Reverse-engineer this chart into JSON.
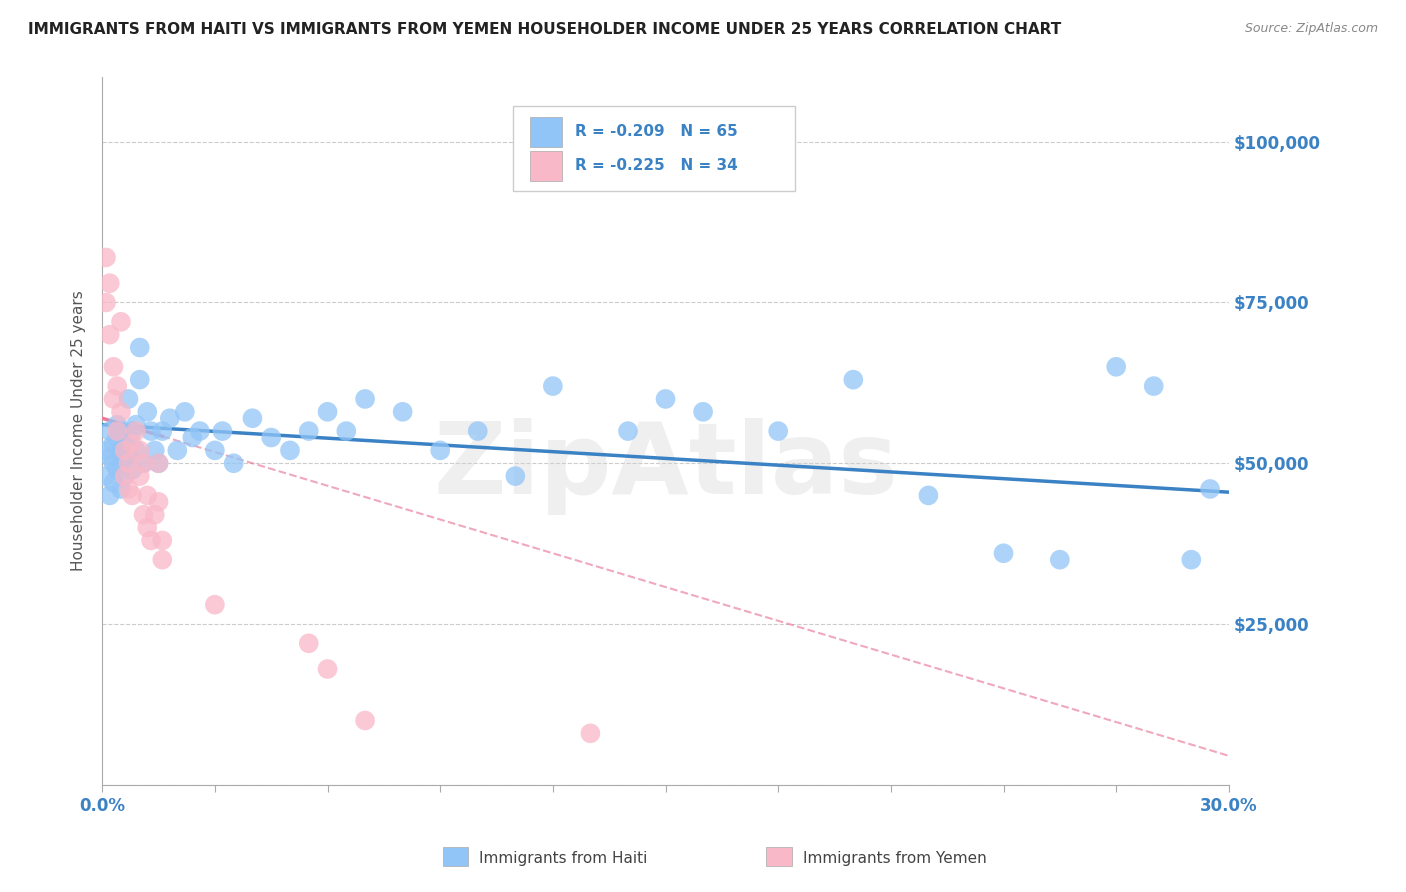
{
  "title": "IMMIGRANTS FROM HAITI VS IMMIGRANTS FROM YEMEN HOUSEHOLDER INCOME UNDER 25 YEARS CORRELATION CHART",
  "source": "Source: ZipAtlas.com",
  "ylabel": "Householder Income Under 25 years",
  "legend_label_1": "Immigrants from Haiti",
  "legend_label_2": "Immigrants from Yemen",
  "R1": -0.209,
  "N1": 65,
  "R2": -0.225,
  "N2": 34,
  "haiti_color": "#92C5F7",
  "haiti_line_color": "#3B82C4",
  "yemen_color": "#F9B8C8",
  "yemen_line_color": "#E87A9A",
  "watermark": "ZipAtlas",
  "xlim": [
    0.0,
    0.3
  ],
  "ylim": [
    0,
    110000
  ],
  "yticks": [
    0,
    25000,
    50000,
    75000,
    100000
  ],
  "ytick_labels": [
    "",
    "$25,000",
    "$50,000",
    "$75,000",
    "$100,000"
  ],
  "haiti_x": [
    0.001,
    0.001,
    0.002,
    0.002,
    0.002,
    0.003,
    0.003,
    0.003,
    0.004,
    0.004,
    0.004,
    0.005,
    0.005,
    0.005,
    0.005,
    0.006,
    0.006,
    0.006,
    0.007,
    0.007,
    0.007,
    0.008,
    0.008,
    0.009,
    0.009,
    0.01,
    0.01,
    0.011,
    0.012,
    0.013,
    0.014,
    0.015,
    0.016,
    0.018,
    0.02,
    0.022,
    0.024,
    0.026,
    0.03,
    0.032,
    0.035,
    0.04,
    0.045,
    0.05,
    0.055,
    0.06,
    0.065,
    0.07,
    0.08,
    0.09,
    0.1,
    0.11,
    0.12,
    0.14,
    0.15,
    0.16,
    0.18,
    0.2,
    0.22,
    0.24,
    0.255,
    0.27,
    0.28,
    0.29,
    0.295
  ],
  "haiti_y": [
    52000,
    48000,
    55000,
    51000,
    45000,
    53000,
    50000,
    47000,
    54000,
    49000,
    56000,
    52000,
    50000,
    46000,
    55000,
    53000,
    51000,
    48000,
    52000,
    54000,
    60000,
    55000,
    49000,
    52000,
    56000,
    68000,
    63000,
    50000,
    58000,
    55000,
    52000,
    50000,
    55000,
    57000,
    52000,
    58000,
    54000,
    55000,
    52000,
    55000,
    50000,
    57000,
    54000,
    52000,
    55000,
    58000,
    55000,
    60000,
    58000,
    52000,
    55000,
    48000,
    62000,
    55000,
    60000,
    58000,
    55000,
    63000,
    45000,
    36000,
    35000,
    65000,
    62000,
    35000,
    46000
  ],
  "yemen_x": [
    0.001,
    0.001,
    0.002,
    0.002,
    0.003,
    0.003,
    0.004,
    0.004,
    0.005,
    0.005,
    0.006,
    0.006,
    0.007,
    0.007,
    0.008,
    0.008,
    0.009,
    0.01,
    0.01,
    0.011,
    0.011,
    0.012,
    0.012,
    0.013,
    0.014,
    0.015,
    0.015,
    0.016,
    0.016,
    0.03,
    0.055,
    0.06,
    0.07,
    0.13
  ],
  "yemen_y": [
    82000,
    75000,
    78000,
    70000,
    65000,
    60000,
    62000,
    55000,
    72000,
    58000,
    52000,
    48000,
    50000,
    46000,
    53000,
    45000,
    55000,
    52000,
    48000,
    50000,
    42000,
    45000,
    40000,
    38000,
    42000,
    50000,
    44000,
    38000,
    35000,
    28000,
    22000,
    18000,
    10000,
    8000
  ]
}
